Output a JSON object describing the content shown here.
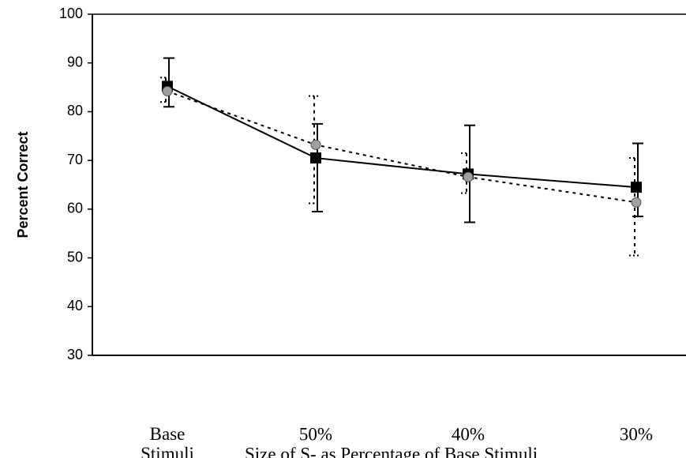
{
  "chart_data": {
    "type": "line",
    "y_label": "Percent Correct",
    "x_label": "Size of S- as Percentage of Base Stimuli",
    "categories": [
      "Base Stimuli",
      "50%",
      "40%",
      "30%"
    ],
    "ylim": [
      30,
      100
    ],
    "yticks": [
      30,
      40,
      50,
      60,
      70,
      80,
      90,
      100
    ],
    "series": [
      {
        "color": "#000000",
        "marker": "square",
        "dash": "solid",
        "values": [
          85.2,
          70.5,
          67.2,
          64.5
        ],
        "upper": [
          91,
          77.5,
          77.2,
          73.5
        ],
        "lower": [
          81,
          59.5,
          57.3,
          58.5
        ]
      },
      {
        "color": "#a0a0a0",
        "marker": "circle",
        "dash": "dotted",
        "values": [
          84.2,
          73.2,
          66.6,
          61.4
        ],
        "upper": [
          87,
          83.2,
          71.5,
          70.5
        ],
        "lower": [
          82,
          61.2,
          63.3,
          50.5
        ]
      }
    ]
  }
}
